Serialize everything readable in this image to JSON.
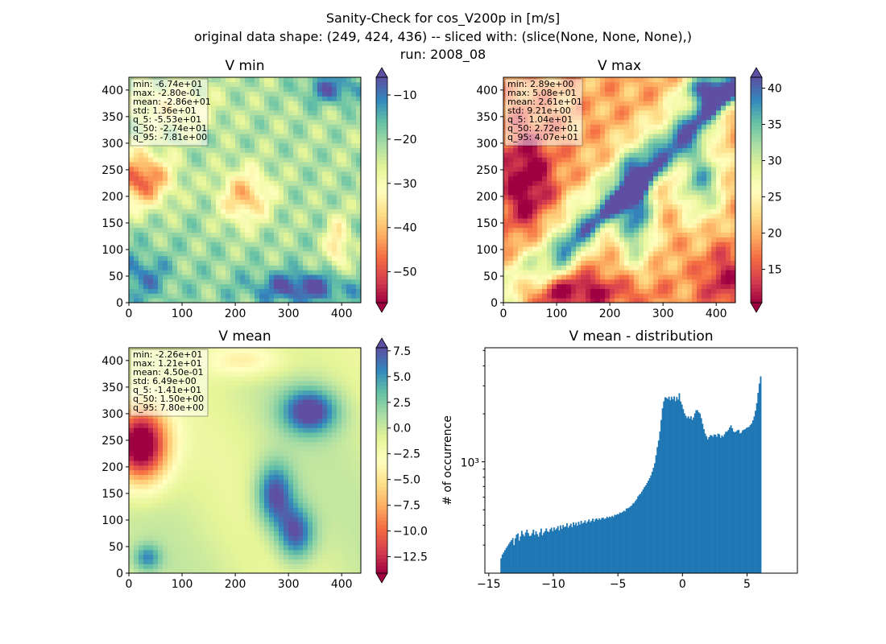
{
  "figure": {
    "title_lines": [
      "Sanity-Check for cos_V200p in [m/s]",
      "original data shape: (249, 424, 436) -- sliced with: (slice(None, None, None),)",
      "run: 2008_08"
    ]
  },
  "chart_data": [
    {
      "type": "heatmap",
      "title": "V min",
      "colormap": "Spectral",
      "xlim": [
        0,
        436
      ],
      "ylim": [
        0,
        424
      ],
      "x_ticks": [
        0,
        100,
        200,
        300,
        400
      ],
      "y_ticks": [
        0,
        50,
        100,
        150,
        200,
        250,
        300,
        350,
        400
      ],
      "colorbar": {
        "range": [
          -57,
          -6
        ],
        "ticks": [
          -50,
          -40,
          -30,
          -20,
          -10
        ],
        "extend": "both"
      },
      "stats_box": [
        "min: -6.74e+01",
        "max: -2.80e-01",
        "mean: -2.86e+01",
        "std: 1.36e+01",
        "q_5: -5.53e+01",
        "q_50: -2.74e+01",
        "q_95: -7.81e+00"
      ]
    },
    {
      "type": "heatmap",
      "title": "V max",
      "colormap": "Spectral",
      "xlim": [
        0,
        436
      ],
      "ylim": [
        0,
        424
      ],
      "x_ticks": [
        0,
        100,
        200,
        300,
        400
      ],
      "y_ticks": [
        0,
        50,
        100,
        150,
        200,
        250,
        300,
        350,
        400
      ],
      "colorbar": {
        "range": [
          10.4,
          41.5
        ],
        "ticks": [
          15,
          20,
          25,
          30,
          35,
          40
        ],
        "extend": "both"
      },
      "stats_box": [
        "min: 2.89e+00",
        "max: 5.08e+01",
        "mean: 2.61e+01",
        "std: 9.21e+00",
        "q_5: 1.04e+01",
        "q_50: 2.72e+01",
        "q_95: 4.07e+01"
      ]
    },
    {
      "type": "heatmap",
      "title": "V mean",
      "colormap": "Spectral",
      "xlim": [
        0,
        436
      ],
      "ylim": [
        0,
        424
      ],
      "x_ticks": [
        0,
        100,
        200,
        300,
        400
      ],
      "y_ticks": [
        0,
        50,
        100,
        150,
        200,
        250,
        300,
        350,
        400
      ],
      "colorbar": {
        "range": [
          -14.1,
          7.8
        ],
        "ticks": [
          -12.5,
          -10.0,
          -7.5,
          -5.0,
          -2.5,
          0.0,
          2.5,
          5.0,
          7.5
        ],
        "extend": "both"
      },
      "stats_box": [
        "min: -2.26e+01",
        "max: 1.21e+01",
        "mean: 4.50e-01",
        "std: 6.49e+00",
        "q_5: -1.41e+01",
        "q_50: 1.50e+00",
        "q_95: 7.80e+00"
      ]
    },
    {
      "type": "bar",
      "title": "V mean - distribution",
      "ylabel": "# of occurrence",
      "yscale": "log",
      "xlim": [
        -15.3,
        8.9
      ],
      "ylim": [
        200,
        5200
      ],
      "x_ticks": [
        -15,
        -10,
        -5,
        0,
        5
      ],
      "y_tick_label": "10³",
      "y_tick_value": 1000,
      "color": "#1f77b4",
      "bins": {
        "start": -14.1,
        "width": 0.1
      },
      "values": [
        248,
        262,
        270,
        279,
        288,
        296,
        305,
        314,
        322,
        332,
        300,
        331,
        349,
        355,
        320,
        340,
        369,
        351,
        341,
        360,
        375,
        357,
        342,
        344,
        356,
        375,
        348,
        367,
        352,
        339,
        361,
        381,
        346,
        359,
        367,
        382,
        366,
        362,
        377,
        386,
        367,
        387,
        374,
        382,
        395,
        371,
        399,
        380,
        401,
        389,
        393,
        411,
        386,
        398,
        409,
        389,
        417,
        401,
        415,
        397,
        420,
        404,
        426,
        410,
        416,
        429,
        412,
        422,
        435,
        418,
        427,
        440,
        421,
        437,
        441,
        431,
        441,
        433,
        444,
        446,
        438,
        441,
        452,
        445,
        453,
        449,
        458,
        450,
        465,
        463,
        470,
        469,
        481,
        477,
        484,
        493,
        489,
        509,
        511,
        515,
        524,
        531,
        547,
        553,
        568,
        582,
        607,
        621,
        632,
        650,
        672,
        694,
        711,
        735,
        761,
        789,
        821,
        865,
        918,
        980,
        1100,
        1237,
        1360,
        1548,
        1832,
        2168,
        2395,
        2542,
        2523,
        2482,
        2565,
        2436,
        2562,
        2466,
        2572,
        2407,
        2553,
        2458,
        2695,
        2393,
        2289,
        2141,
        2016,
        1943,
        1881,
        1930,
        1869,
        1932,
        1835,
        1898,
        2014,
        2106,
        2111,
        2046,
        2009,
        1881,
        1732,
        1605,
        1504,
        1448,
        1384,
        1431,
        1469,
        1467,
        1437,
        1485,
        1479,
        1436,
        1503,
        1489,
        1417,
        1464,
        1436,
        1490,
        1545,
        1546,
        1584,
        1642,
        1695,
        1624,
        1548,
        1533,
        1549,
        1578,
        1588,
        1508,
        1524,
        1575,
        1592,
        1601,
        1632,
        1648,
        1657,
        1703,
        1740,
        1821,
        1927,
        2093,
        2335,
        2709,
        3100,
        3440
      ]
    }
  ]
}
